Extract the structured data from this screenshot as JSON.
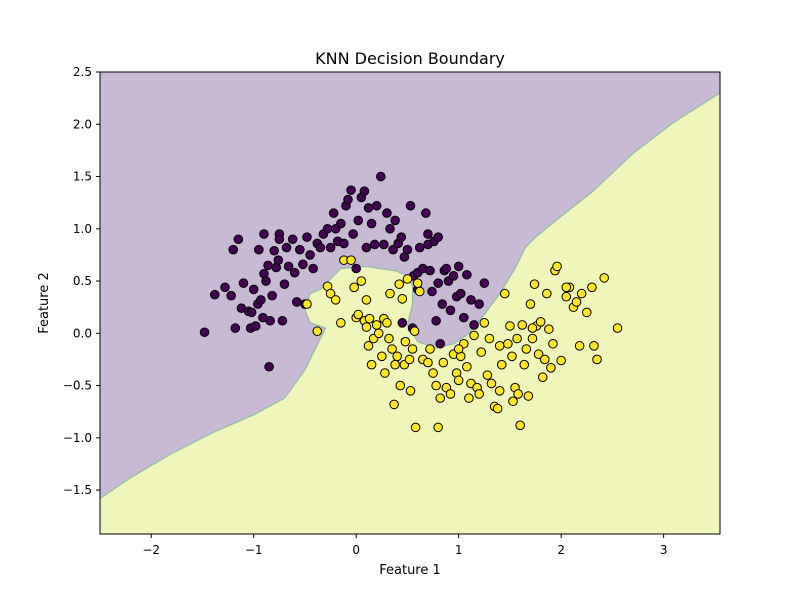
{
  "chart_data": {
    "type": "scatter",
    "title": "KNN Decision Boundary",
    "xlabel": "Feature 1",
    "ylabel": "Feature 2",
    "xlim": [
      -2.5,
      3.55
    ],
    "ylim": [
      -1.92,
      2.5
    ],
    "xticks": [
      -2,
      -1,
      0,
      1,
      2,
      3
    ],
    "xtick_labels": [
      "−2",
      "−1",
      "0",
      "1",
      "2",
      "3"
    ],
    "yticks": [
      -1.5,
      -1.0,
      -0.5,
      0.0,
      0.5,
      1.0,
      1.5,
      2.0,
      2.5
    ],
    "ytick_labels": [
      "−1.5",
      "−1.0",
      "−0.5",
      "0.0",
      "0.5",
      "1.0",
      "1.5",
      "2.0",
      "2.5"
    ],
    "grid": false,
    "legend": "none",
    "colors": {
      "class0_point": "#440154",
      "class1_point": "#fde725",
      "class0_region": "#c8bad5",
      "class1_region": "#f0f5b9",
      "boundary": "#8fbf9f",
      "point_edge": "#000000"
    },
    "decision_boundary": [
      [
        -2.5,
        -1.58
      ],
      [
        -2.2,
        -1.38
      ],
      [
        -1.8,
        -1.15
      ],
      [
        -1.4,
        -0.95
      ],
      [
        -1.0,
        -0.78
      ],
      [
        -0.7,
        -0.62
      ],
      [
        -0.5,
        -0.35
      ],
      [
        -0.35,
        -0.05
      ],
      [
        -0.3,
        0.05
      ],
      [
        -0.45,
        0.1
      ],
      [
        -0.5,
        0.22
      ],
      [
        -0.45,
        0.38
      ],
      [
        -0.35,
        0.42
      ],
      [
        -0.25,
        0.52
      ],
      [
        -0.15,
        0.62
      ],
      [
        0.1,
        0.64
      ],
      [
        0.22,
        0.62
      ],
      [
        0.38,
        0.6
      ],
      [
        0.5,
        0.55
      ],
      [
        0.55,
        0.45
      ],
      [
        0.55,
        0.28
      ],
      [
        0.5,
        0.08
      ],
      [
        0.6,
        -0.08
      ],
      [
        0.78,
        -0.14
      ],
      [
        0.95,
        -0.1
      ],
      [
        1.1,
        0.0
      ],
      [
        1.25,
        0.18
      ],
      [
        1.4,
        0.38
      ],
      [
        1.55,
        0.62
      ],
      [
        1.65,
        0.82
      ],
      [
        1.75,
        0.92
      ],
      [
        2.0,
        1.12
      ],
      [
        2.3,
        1.35
      ],
      [
        2.7,
        1.72
      ],
      [
        3.1,
        2.02
      ],
      [
        3.55,
        2.3
      ]
    ],
    "series": [
      {
        "class": 0,
        "points": [
          [
            -1.48,
            0.01
          ],
          [
            -1.38,
            0.37
          ],
          [
            -1.28,
            0.44
          ],
          [
            -1.22,
            0.36
          ],
          [
            -1.18,
            0.05
          ],
          [
            -1.15,
            0.9
          ],
          [
            -1.12,
            0.24
          ],
          [
            -1.1,
            0.48
          ],
          [
            -1.05,
            0.21
          ],
          [
            -1.03,
            0.05
          ],
          [
            -1.02,
            0.2
          ],
          [
            -1.0,
            0.42
          ],
          [
            -0.98,
            0.07
          ],
          [
            -0.96,
            0.28
          ],
          [
            -0.95,
            0.8
          ],
          [
            -0.93,
            0.32
          ],
          [
            -0.91,
            0.15
          ],
          [
            -0.9,
            0.57
          ],
          [
            -0.88,
            0.5
          ],
          [
            -0.86,
            0.65
          ],
          [
            -0.85,
            -0.32
          ],
          [
            -0.84,
            0.12
          ],
          [
            -0.82,
            0.36
          ],
          [
            -0.8,
            0.79
          ],
          [
            -0.78,
            0.63
          ],
          [
            -0.76,
            0.7
          ],
          [
            -0.75,
            0.95
          ],
          [
            -0.72,
            0.12
          ],
          [
            -0.7,
            0.47
          ],
          [
            -0.68,
            0.82
          ],
          [
            -0.66,
            0.64
          ],
          [
            -0.62,
            0.9
          ],
          [
            -0.6,
            0.58
          ],
          [
            -0.58,
            0.3
          ],
          [
            -0.55,
            0.8
          ],
          [
            -0.52,
            0.66
          ],
          [
            -0.5,
            0.28
          ],
          [
            -0.48,
            0.92
          ],
          [
            -0.45,
            0.75
          ],
          [
            -0.42,
            0.62
          ],
          [
            -0.38,
            0.86
          ],
          [
            -0.35,
            0.82
          ],
          [
            -0.32,
            0.95
          ],
          [
            -0.28,
            1.0
          ],
          [
            -0.25,
            0.82
          ],
          [
            -0.22,
            1.15
          ],
          [
            -0.2,
            1.0
          ],
          [
            -0.18,
            0.88
          ],
          [
            -0.15,
            1.05
          ],
          [
            -0.12,
            0.86
          ],
          [
            -0.1,
            1.22
          ],
          [
            -0.08,
            1.28
          ],
          [
            -0.05,
            1.37
          ],
          [
            -0.03,
            0.95
          ],
          [
            0.0,
            0.62
          ],
          [
            0.02,
            1.08
          ],
          [
            0.05,
            1.3
          ],
          [
            0.08,
            1.36
          ],
          [
            0.1,
            0.82
          ],
          [
            0.12,
            1.2
          ],
          [
            0.15,
            1.05
          ],
          [
            0.18,
            0.85
          ],
          [
            0.2,
            1.22
          ],
          [
            0.24,
            1.5
          ],
          [
            0.27,
            0.85
          ],
          [
            0.3,
            1.15
          ],
          [
            0.33,
            1.0
          ],
          [
            0.36,
            0.8
          ],
          [
            0.38,
            1.08
          ],
          [
            0.41,
            0.86
          ],
          [
            0.44,
            0.92
          ],
          [
            0.47,
            0.73
          ],
          [
            0.5,
            0.8
          ],
          [
            0.53,
            1.22
          ],
          [
            0.56,
            0.55
          ],
          [
            0.6,
            0.58
          ],
          [
            0.62,
            0.82
          ],
          [
            0.65,
            0.62
          ],
          [
            0.68,
            1.15
          ],
          [
            0.7,
            0.95
          ],
          [
            0.72,
            0.6
          ],
          [
            0.74,
            0.4
          ],
          [
            0.76,
            0.88
          ],
          [
            0.78,
            0.12
          ],
          [
            0.8,
            0.48
          ],
          [
            0.82,
            -0.1
          ],
          [
            0.84,
            0.28
          ],
          [
            0.86,
            0.6
          ],
          [
            0.88,
            0.62
          ],
          [
            0.9,
            0.5
          ],
          [
            0.92,
            0.22
          ],
          [
            0.95,
            0.55
          ],
          [
            0.98,
            0.35
          ],
          [
            1.0,
            0.64
          ],
          [
            1.02,
            0.38
          ],
          [
            1.05,
            0.15
          ],
          [
            1.08,
            0.56
          ],
          [
            1.12,
            0.32
          ],
          [
            1.15,
            0.08
          ],
          [
            1.2,
            0.28
          ],
          [
            1.25,
            0.48
          ],
          [
            0.55,
            0.05
          ],
          [
            -0.9,
            0.95
          ],
          [
            -0.75,
            0.9
          ],
          [
            -1.2,
            0.8
          ],
          [
            0.8,
            0.92
          ],
          [
            0.7,
            0.85
          ],
          [
            0.45,
            0.1
          ],
          [
            0.6,
            0.42
          ]
        ]
      },
      {
        "class": 1,
        "points": [
          [
            -0.48,
            0.28
          ],
          [
            -0.38,
            0.02
          ],
          [
            -0.28,
            0.45
          ],
          [
            -0.25,
            0.38
          ],
          [
            -0.15,
            0.1
          ],
          [
            -0.12,
            0.7
          ],
          [
            -0.05,
            0.7
          ],
          [
            -0.02,
            0.44
          ],
          [
            0.0,
            0.15
          ],
          [
            0.02,
            0.18
          ],
          [
            0.05,
            0.5
          ],
          [
            0.08,
            0.12
          ],
          [
            0.1,
            0.06
          ],
          [
            0.12,
            -0.12
          ],
          [
            0.13,
            0.14
          ],
          [
            0.15,
            -0.3
          ],
          [
            0.17,
            -0.05
          ],
          [
            0.2,
            0.08
          ],
          [
            0.22,
            0.0
          ],
          [
            0.25,
            -0.22
          ],
          [
            0.27,
            0.14
          ],
          [
            0.28,
            -0.38
          ],
          [
            0.3,
            0.1
          ],
          [
            0.32,
            -0.05
          ],
          [
            0.33,
            0.38
          ],
          [
            0.35,
            -0.15
          ],
          [
            0.37,
            -0.68
          ],
          [
            0.38,
            -0.3
          ],
          [
            0.4,
            -0.22
          ],
          [
            0.42,
            0.47
          ],
          [
            0.43,
            -0.5
          ],
          [
            0.45,
            0.33
          ],
          [
            0.47,
            -0.3
          ],
          [
            0.48,
            -0.08
          ],
          [
            0.5,
            0.52
          ],
          [
            0.52,
            -0.25
          ],
          [
            0.53,
            -0.55
          ],
          [
            0.55,
            -0.15
          ],
          [
            0.57,
            0.02
          ],
          [
            0.58,
            -0.9
          ],
          [
            0.62,
            0.4
          ],
          [
            0.65,
            -0.25
          ],
          [
            0.7,
            -0.28
          ],
          [
            0.72,
            -0.15
          ],
          [
            0.75,
            -0.38
          ],
          [
            0.78,
            -0.5
          ],
          [
            0.8,
            -0.9
          ],
          [
            0.82,
            -0.62
          ],
          [
            0.85,
            -0.28
          ],
          [
            0.88,
            -0.52
          ],
          [
            0.92,
            -0.58
          ],
          [
            0.95,
            -0.2
          ],
          [
            0.98,
            -0.38
          ],
          [
            1.0,
            -0.45
          ],
          [
            1.02,
            -0.22
          ],
          [
            1.05,
            -0.1
          ],
          [
            1.08,
            -0.32
          ],
          [
            1.1,
            -0.62
          ],
          [
            1.12,
            -0.48
          ],
          [
            1.15,
            -0.02
          ],
          [
            1.18,
            -0.52
          ],
          [
            1.2,
            -0.58
          ],
          [
            1.22,
            -0.18
          ],
          [
            1.25,
            0.1
          ],
          [
            1.28,
            -0.4
          ],
          [
            1.3,
            -0.05
          ],
          [
            1.32,
            -0.48
          ],
          [
            1.35,
            -0.7
          ],
          [
            1.38,
            -0.72
          ],
          [
            1.4,
            -0.12
          ],
          [
            1.42,
            -0.3
          ],
          [
            1.45,
            0.38
          ],
          [
            1.48,
            -0.1
          ],
          [
            1.5,
            0.07
          ],
          [
            1.52,
            -0.22
          ],
          [
            1.53,
            -0.65
          ],
          [
            1.55,
            -0.52
          ],
          [
            1.57,
            -0.05
          ],
          [
            1.6,
            -0.88
          ],
          [
            1.62,
            0.08
          ],
          [
            1.64,
            -0.3
          ],
          [
            1.66,
            -0.15
          ],
          [
            1.68,
            -0.6
          ],
          [
            1.7,
            0.28
          ],
          [
            1.72,
            -0.05
          ],
          [
            1.74,
            0.47
          ],
          [
            1.76,
            0.07
          ],
          [
            1.78,
            -0.2
          ],
          [
            1.8,
            0.11
          ],
          [
            1.82,
            -0.42
          ],
          [
            1.84,
            -0.25
          ],
          [
            1.86,
            0.38
          ],
          [
            1.88,
            0.04
          ],
          [
            1.9,
            -0.33
          ],
          [
            1.92,
            -0.1
          ],
          [
            1.94,
            0.6
          ],
          [
            1.96,
            0.64
          ],
          [
            2.0,
            -0.26
          ],
          [
            2.05,
            0.35
          ],
          [
            2.08,
            0.44
          ],
          [
            2.12,
            0.25
          ],
          [
            2.15,
            0.3
          ],
          [
            2.18,
            -0.12
          ],
          [
            2.2,
            0.38
          ],
          [
            2.25,
            0.2
          ],
          [
            2.3,
            0.44
          ],
          [
            2.32,
            -0.12
          ],
          [
            2.35,
            -0.25
          ],
          [
            2.42,
            0.53
          ],
          [
            2.55,
            0.05
          ],
          [
            -0.2,
            0.32
          ],
          [
            0.1,
            0.32
          ],
          [
            0.6,
            0.48
          ],
          [
            1.0,
            -0.15
          ],
          [
            1.4,
            -0.55
          ],
          [
            1.58,
            -0.58
          ],
          [
            1.72,
            0.05
          ],
          [
            2.05,
            0.44
          ]
        ]
      }
    ]
  }
}
